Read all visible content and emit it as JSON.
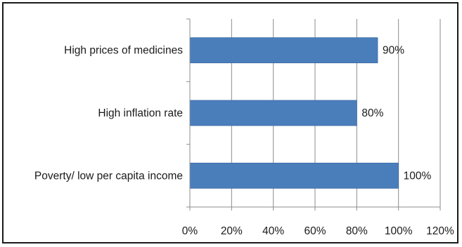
{
  "chart_data": {
    "type": "bar",
    "orientation": "horizontal",
    "categories": [
      "High prices of medicines",
      "High inflation rate",
      "Poverty/ low per capita income"
    ],
    "values": [
      90,
      80,
      100
    ],
    "data_labels": [
      "90%",
      "80%",
      "100%"
    ],
    "xlim": [
      0,
      120
    ],
    "x_ticks": [
      0,
      20,
      40,
      60,
      80,
      100,
      120
    ],
    "x_tick_labels": [
      "0%",
      "20%",
      "40%",
      "60%",
      "80%",
      "100%",
      "120%"
    ],
    "grid": "vertical",
    "legend": "none",
    "bar_color": "#4a7ebb",
    "grid_color": "#8c8c8c",
    "title": "",
    "xlabel": "",
    "ylabel": ""
  }
}
